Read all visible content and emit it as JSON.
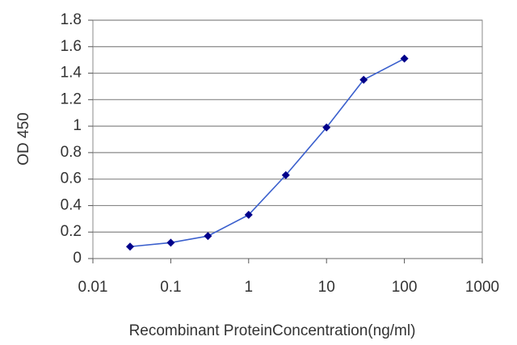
{
  "chart_data": {
    "type": "line",
    "xlabel": "Recombinant ProteinConcentration(ng/ml)",
    "ylabel": "OD 450",
    "x": [
      0.03,
      0.1,
      0.3,
      1,
      3,
      10,
      30,
      100
    ],
    "series": [
      {
        "color": "#3a5fcd",
        "marker_color": "#00008b",
        "values": [
          0.09,
          0.12,
          0.17,
          0.33,
          0.63,
          0.99,
          1.35,
          1.51
        ]
      }
    ],
    "xscale": "log",
    "xlim": [
      0.01,
      1000
    ],
    "xticks": [
      0.01,
      0.1,
      1,
      10,
      100,
      1000
    ],
    "ylim": [
      0,
      1.8
    ],
    "yticks": [
      0,
      0.2,
      0.4,
      0.6,
      0.8,
      1,
      1.2,
      1.4,
      1.6,
      1.8
    ],
    "grid": true
  }
}
